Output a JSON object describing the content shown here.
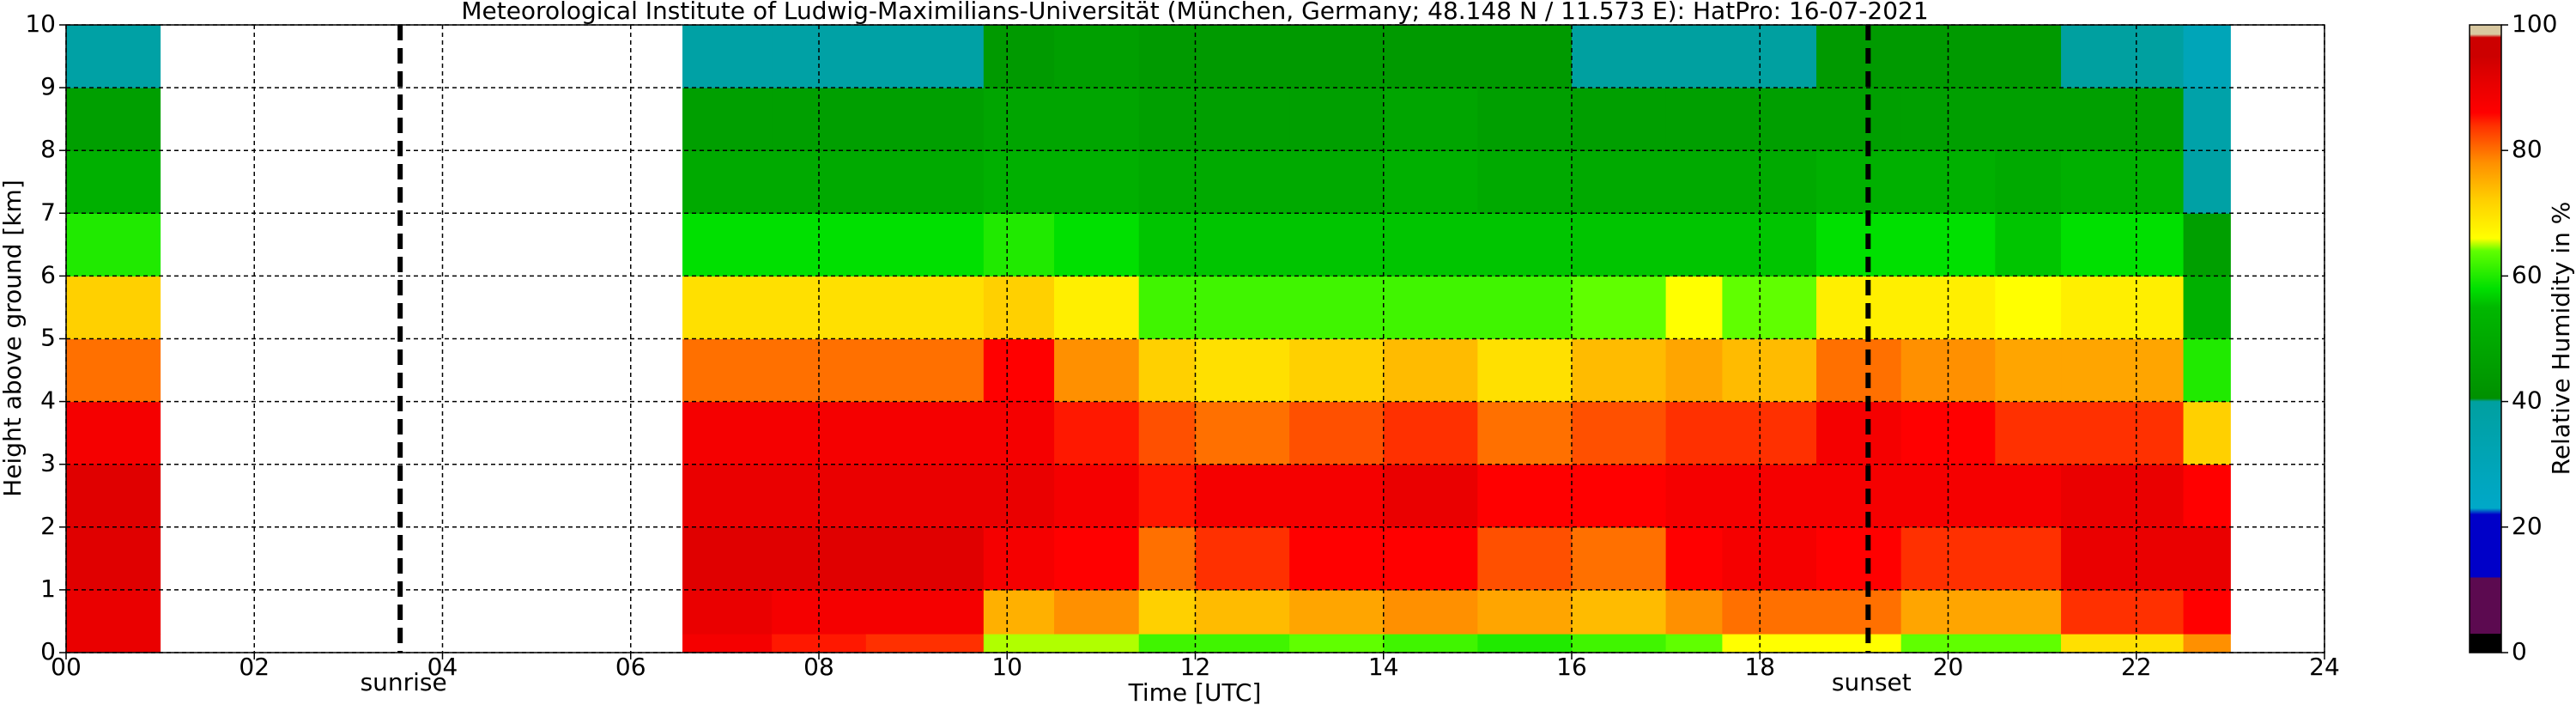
{
  "chart_data": {
    "type": "heatmap",
    "title": "Meteorological Institute of Ludwig-Maximilians-Universität (München, Germany; 48.148 N / 11.573 E):    HatPro: 16-07-2021",
    "x_label": "Time [UTC]",
    "y_label": "Height above ground [km]",
    "colorbar_label": "Relative Humidity in %",
    "x_edges": [
      0,
      1,
      6.55,
      7.5,
      8.5,
      9.75,
      10.5,
      11.4,
      12,
      13,
      14,
      15,
      16,
      17,
      17.6,
      18.6,
      19.5,
      20.5,
      21.2,
      22.5,
      23
    ],
    "y_edges": [
      0,
      0.3,
      1,
      2,
      3,
      4,
      5,
      6,
      7,
      8,
      9,
      10
    ],
    "values": [
      [
        90,
        90,
        92,
        92,
        88,
        80,
        72,
        60,
        52,
        46,
        38
      ],
      [
        null,
        null,
        null,
        null,
        null,
        null,
        null,
        null,
        null,
        null,
        null
      ],
      [
        88,
        90,
        92,
        90,
        88,
        80,
        70,
        58,
        50,
        46,
        38
      ],
      [
        85,
        88,
        92,
        90,
        88,
        80,
        70,
        58,
        50,
        46,
        38
      ],
      [
        84,
        88,
        92,
        90,
        88,
        80,
        70,
        58,
        50,
        46,
        38
      ],
      [
        65,
        75,
        88,
        90,
        88,
        86,
        72,
        60,
        52,
        48,
        44
      ],
      [
        65,
        78,
        86,
        88,
        85,
        78,
        68,
        58,
        52,
        48,
        46
      ],
      [
        62,
        72,
        80,
        85,
        82,
        72,
        62,
        56,
        50,
        46,
        44
      ],
      [
        62,
        74,
        84,
        88,
        80,
        70,
        62,
        56,
        50,
        46,
        44
      ],
      [
        64,
        76,
        86,
        88,
        82,
        72,
        62,
        56,
        50,
        46,
        44
      ],
      [
        62,
        78,
        86,
        90,
        84,
        74,
        62,
        56,
        52,
        48,
        44
      ],
      [
        60,
        76,
        82,
        86,
        80,
        70,
        62,
        56,
        50,
        46,
        44
      ],
      [
        62,
        74,
        80,
        86,
        82,
        74,
        64,
        56,
        50,
        46,
        40
      ],
      [
        64,
        78,
        86,
        88,
        84,
        76,
        66,
        56,
        50,
        46,
        40
      ],
      [
        66,
        80,
        88,
        88,
        84,
        74,
        64,
        56,
        50,
        46,
        40
      ],
      [
        66,
        80,
        86,
        88,
        88,
        80,
        68,
        58,
        52,
        46,
        44
      ],
      [
        64,
        76,
        84,
        88,
        86,
        78,
        68,
        58,
        52,
        46,
        44
      ],
      [
        64,
        76,
        84,
        88,
        84,
        76,
        66,
        56,
        50,
        46,
        44
      ],
      [
        70,
        84,
        90,
        90,
        84,
        76,
        68,
        58,
        52,
        46,
        40
      ],
      [
        78,
        86,
        90,
        86,
        72,
        60,
        52,
        46,
        38,
        36,
        30
      ]
    ],
    "xlim": [
      0,
      24
    ],
    "ylim": [
      0,
      10
    ],
    "xticks": [
      {
        "value": 0,
        "label": "00"
      },
      {
        "value": 2,
        "label": "02"
      },
      {
        "value": 4,
        "label": "04"
      },
      {
        "value": 6,
        "label": "06"
      },
      {
        "value": 8,
        "label": "08"
      },
      10,
      12,
      14,
      16,
      18,
      20,
      22,
      24
    ],
    "yticks": [
      0,
      1,
      2,
      3,
      4,
      5,
      6,
      7,
      8,
      9,
      10
    ],
    "grid": true,
    "clim": [
      0,
      100
    ],
    "cticks": [
      0,
      20,
      40,
      60,
      80,
      100
    ],
    "colormap": [
      [
        0,
        "#000000"
      ],
      [
        3,
        "#000000"
      ],
      [
        3,
        "#5c0a50"
      ],
      [
        12,
        "#5c0a50"
      ],
      [
        12,
        "#0000c8"
      ],
      [
        22,
        "#0000c8"
      ],
      [
        23,
        "#00a8c8"
      ],
      [
        40,
        "#00a0a0"
      ],
      [
        40.5,
        "#009000"
      ],
      [
        55,
        "#00b800"
      ],
      [
        58,
        "#00e000"
      ],
      [
        64,
        "#60ff00"
      ],
      [
        66,
        "#ffff00"
      ],
      [
        72,
        "#ffd000"
      ],
      [
        78,
        "#ff9000"
      ],
      [
        84,
        "#ff3000"
      ],
      [
        86,
        "#ff0000"
      ],
      [
        92,
        "#e00000"
      ],
      [
        95,
        "#cc0000"
      ],
      [
        98,
        "#cc0000"
      ],
      [
        98.5,
        "#d8c8a0"
      ],
      [
        100,
        "#d8c8a0"
      ]
    ],
    "annotations": [
      {
        "text": "sunrise",
        "x": 3.55
      },
      {
        "text": "sunset",
        "x": 19.15
      }
    ]
  }
}
